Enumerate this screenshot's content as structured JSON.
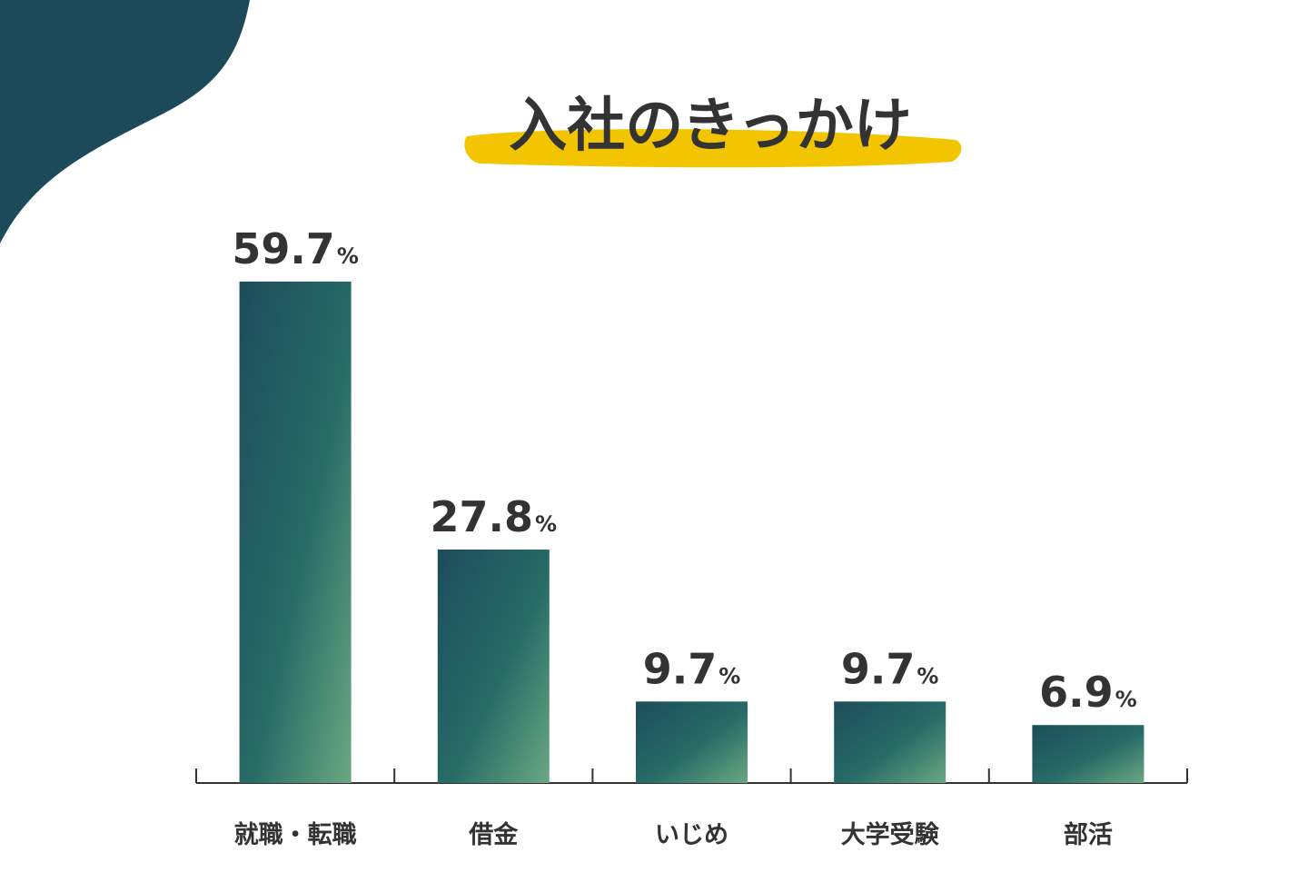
{
  "colors": {
    "accent_dark": "#1c4a5a",
    "bar_top": "#1d4d5b",
    "bar_mid": "#276b66",
    "bar_bottom": "#6aa882",
    "highlight": "#f2c500",
    "text": "#333333",
    "axis": "#333333"
  },
  "chart_data": {
    "type": "bar",
    "title": "入社のきっかけ",
    "categories": [
      "就職・転職",
      "借金",
      "いじめ",
      "大学受験",
      "部活"
    ],
    "values": [
      59.7,
      27.8,
      9.7,
      9.7,
      6.9
    ],
    "value_labels": [
      "59.7",
      "27.8",
      "9.7",
      "9.7",
      "6.9"
    ],
    "unit": "%",
    "xlabel": "",
    "ylabel": "",
    "ylim": [
      0,
      61
    ],
    "grid": false,
    "legend": "none"
  }
}
